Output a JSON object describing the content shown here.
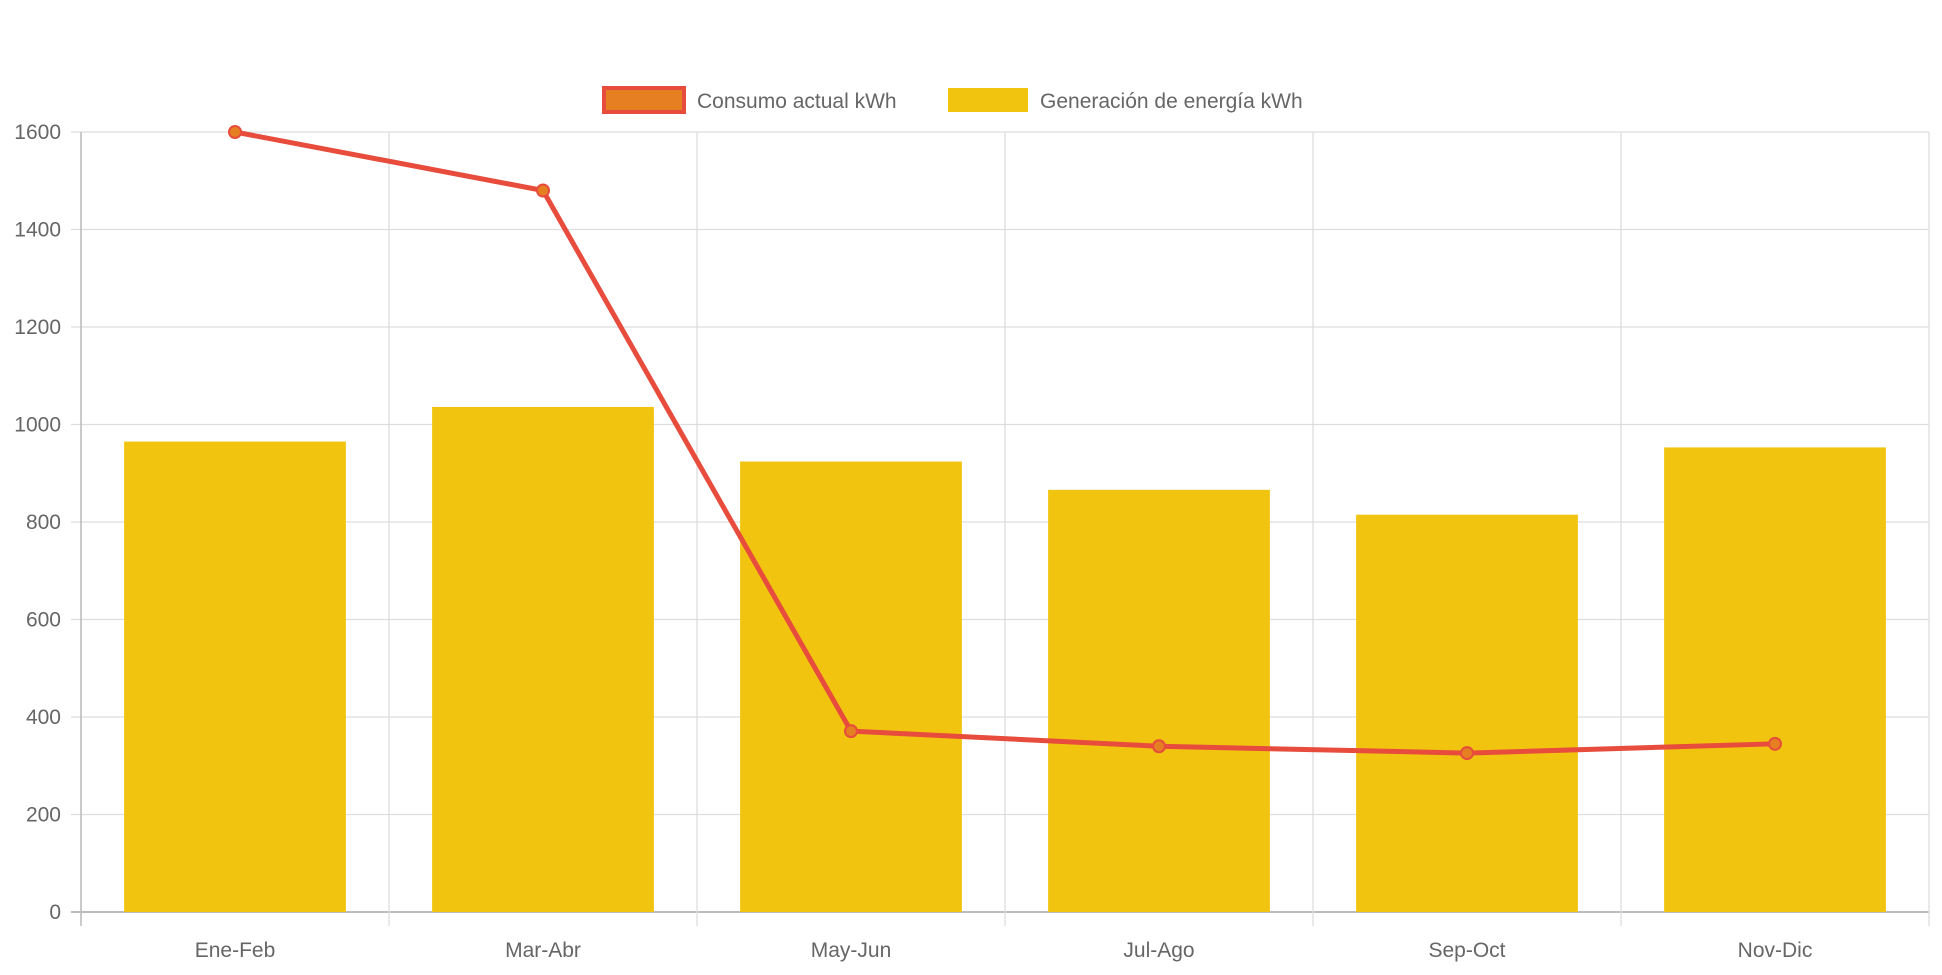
{
  "chart_data": {
    "type": "bar",
    "categories": [
      "Ene-Feb",
      "Mar-Abr",
      "May-Jun",
      "Jul-Ago",
      "Sep-Oct",
      "Nov-Dic"
    ],
    "series": [
      {
        "name": "Consumo actual kWh",
        "type": "line",
        "values": [
          1600,
          1480,
          371,
          340,
          326,
          345
        ],
        "color": "#e74c3c",
        "point_color": "#e67e22"
      },
      {
        "name": "Generación de energía kWh",
        "type": "bar",
        "values": [
          965,
          1036,
          924,
          866,
          815,
          953
        ],
        "color": "#f1c40f"
      }
    ],
    "ylim": [
      0,
      1600
    ],
    "yticks": [
      0,
      200,
      400,
      600,
      800,
      1000,
      1200,
      1400,
      1600
    ],
    "grid": true,
    "legend": "top"
  }
}
